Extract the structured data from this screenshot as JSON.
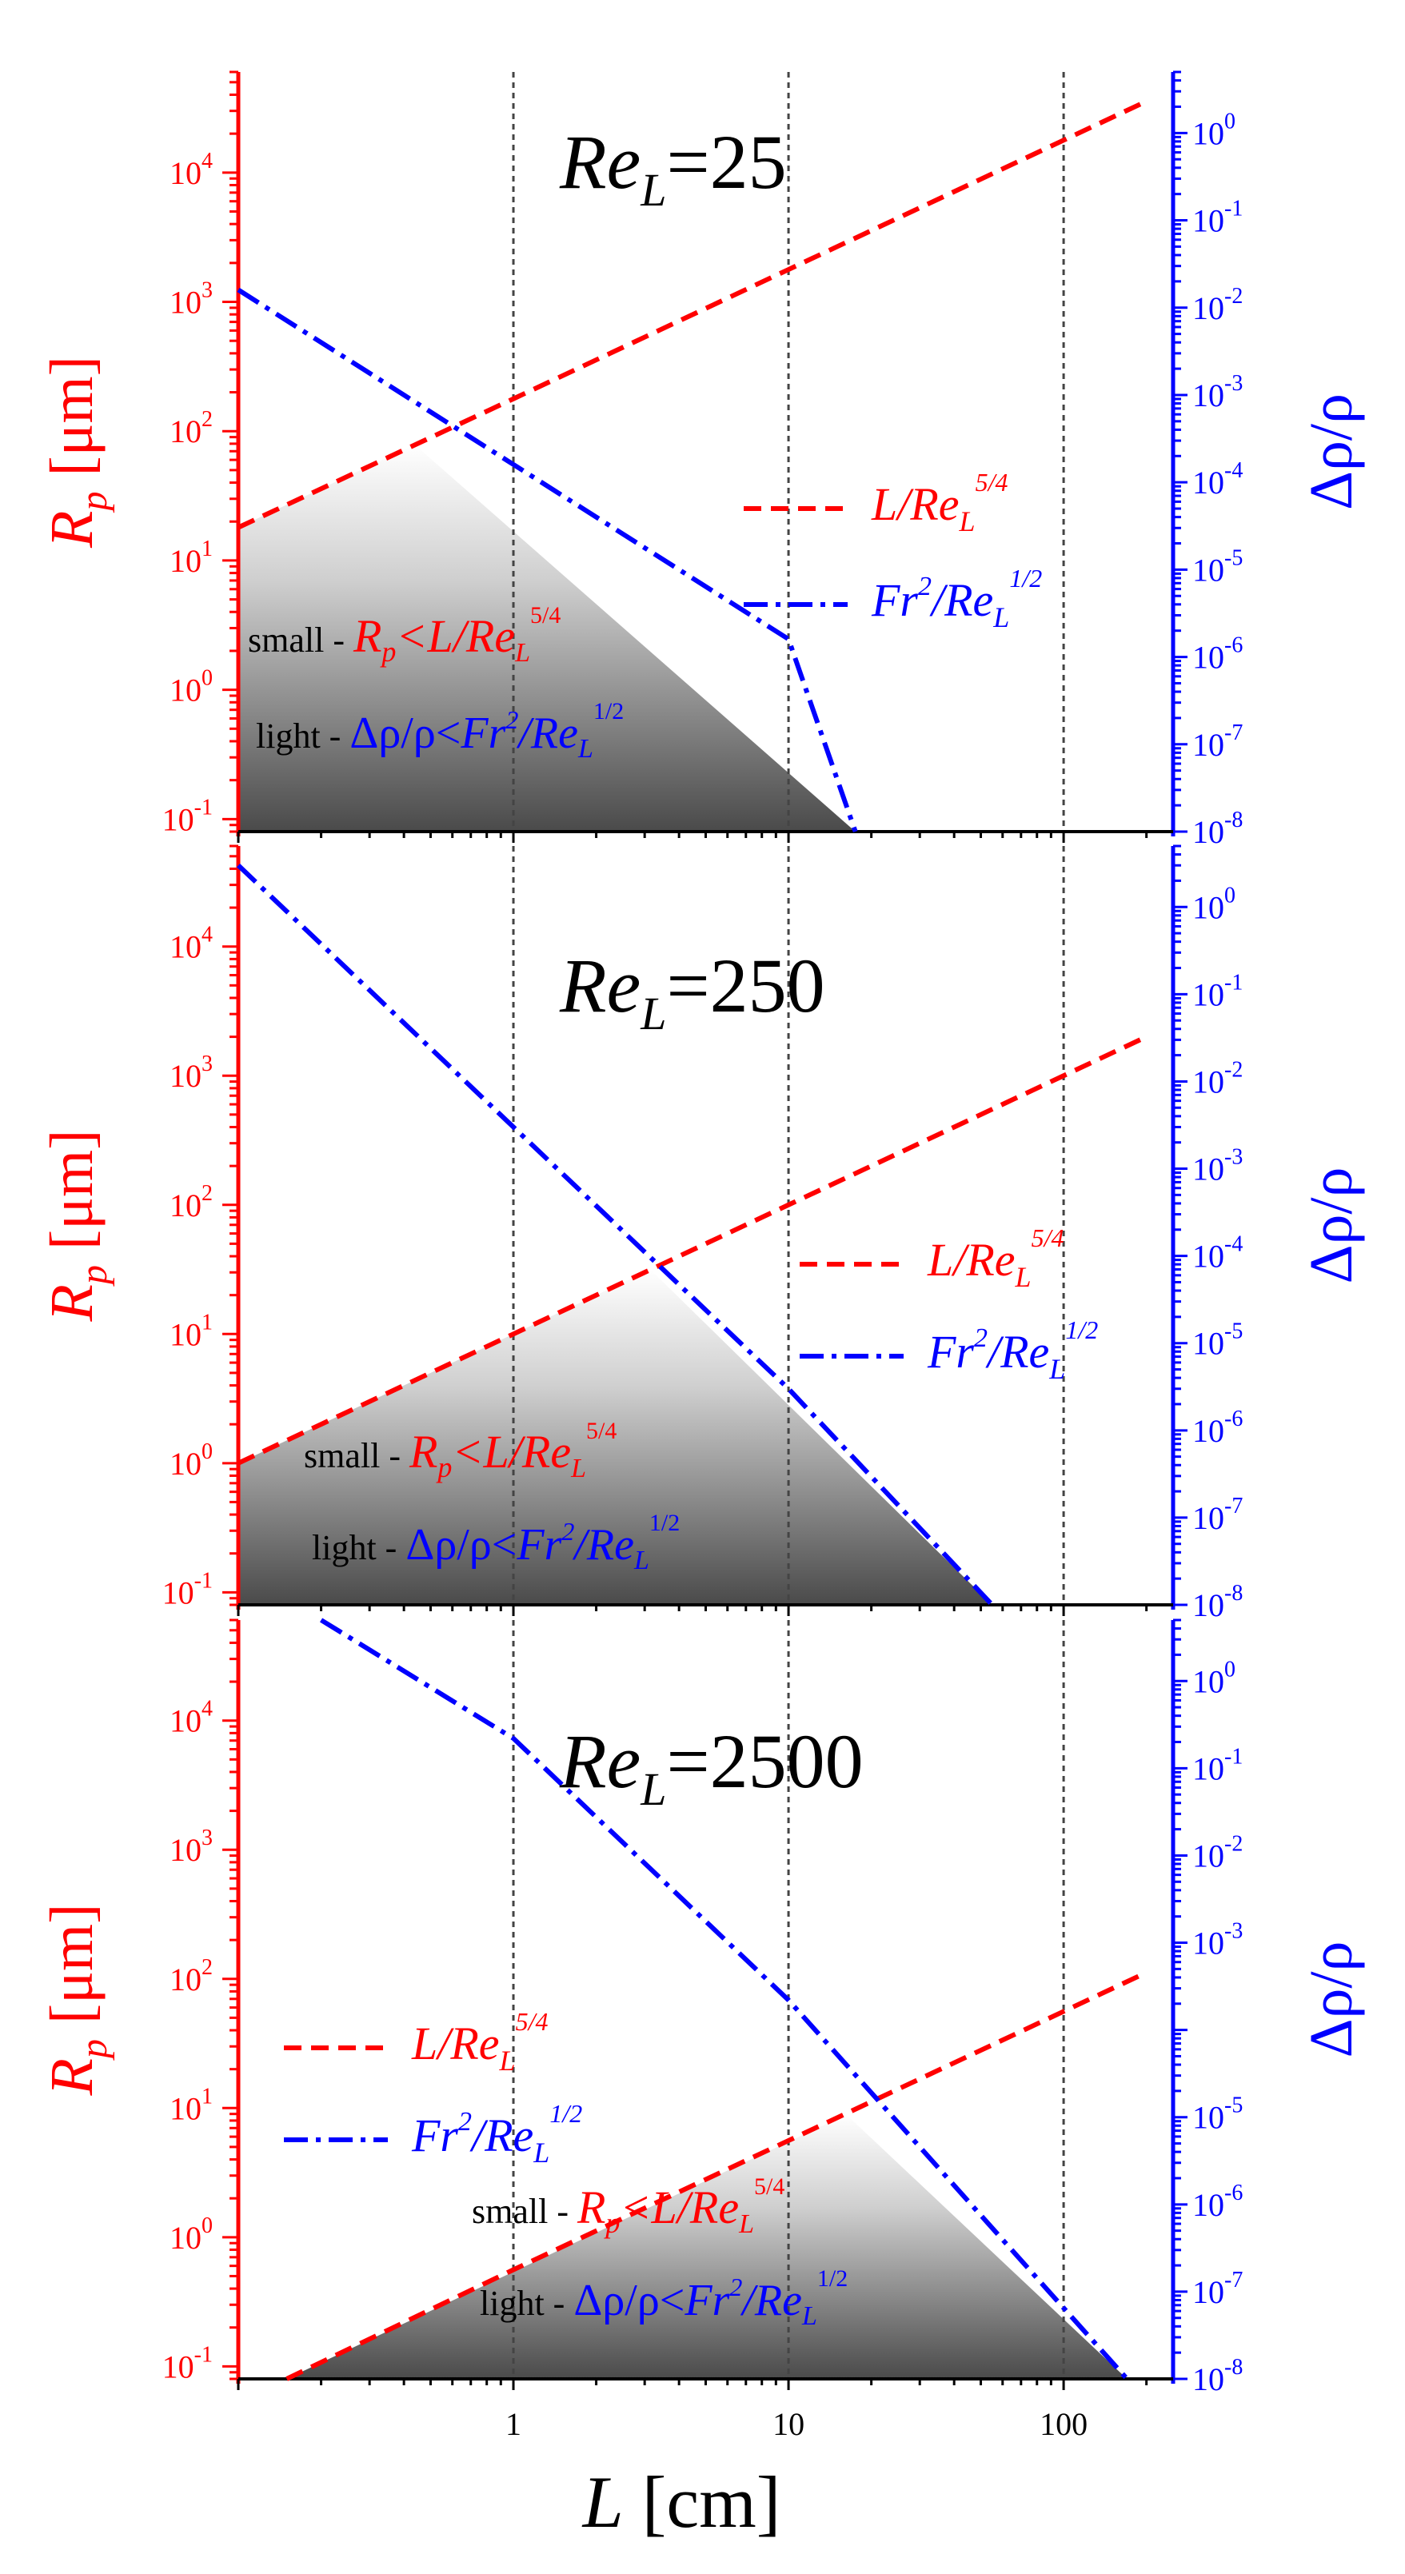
{
  "chart_data": [
    {
      "type": "line",
      "title": "Re_L=25",
      "title_parts": {
        "base": "Re",
        "sub": "L",
        "rest": "=25"
      },
      "xscale": "log",
      "y1scale": "log",
      "y2scale": "log",
      "xlim": [
        0.1,
        250
      ],
      "ylim": [
        0.08,
        60000
      ],
      "y2lim": [
        1e-08,
        5
      ],
      "x_grid_lines": [
        1,
        10,
        100
      ],
      "x_ticklabels": [],
      "y_ticklabels": [
        "10^-1",
        "10^0",
        "10^1",
        "10^2",
        "10^3",
        "10^4"
      ],
      "y2_ticklabels": [
        "10^-8",
        "10^-7",
        "10^-6",
        "10^-5",
        "10^-4",
        "10^-3",
        "10^-2",
        "10^-1",
        "10^0"
      ],
      "ylabel": "R_p [μm]",
      "y2label": "Δρ/ρ",
      "series": [
        {
          "name": "L/Re_L^5/4",
          "axis": "left",
          "style": "dashed",
          "color": "#ff0000",
          "x": [
            0.1,
            1,
            10,
            100,
            200
          ],
          "y": [
            18,
            178,
            1780,
            17800,
            35600
          ]
        },
        {
          "name": "Fr^2/Re_L^1/2",
          "axis": "right",
          "style": "dashdot",
          "color": "#0000ff",
          "x": [
            0.1,
            1,
            10,
            17.5
          ],
          "y": [
            0.016,
            0.00016,
            1.6e-06,
            1e-08
          ]
        }
      ],
      "legend": {
        "position": "center-right",
        "entries": [
          {
            "series": 0,
            "base": "L/Re",
            "sub": "L",
            "sup": "5/4"
          },
          {
            "series": 1,
            "base": "Fr",
            "sup1": "2",
            "mid": "/Re",
            "sub": "L",
            "sup": "1/2"
          }
        ]
      },
      "annotations": [
        {
          "prefix": "small - ",
          "text": "R_p<L/Re_L^5/4"
        },
        {
          "prefix": "light - ",
          "text": "Δρ/ρ<Fr^2/Re_L^1/2"
        }
      ]
    },
    {
      "type": "line",
      "title": "Re_L=250",
      "title_parts": {
        "base": "Re",
        "sub": "L",
        "rest": "=250"
      },
      "xscale": "log",
      "y1scale": "log",
      "y2scale": "log",
      "xlim": [
        0.1,
        250
      ],
      "ylim": [
        0.08,
        60000
      ],
      "y2lim": [
        1e-08,
        5
      ],
      "x_grid_lines": [
        1,
        10,
        100
      ],
      "x_ticklabels": [],
      "y_ticklabels": [
        "10^-1",
        "10^0",
        "10^1",
        "10^2",
        "10^3",
        "10^4"
      ],
      "y2_ticklabels": [
        "10^-8",
        "10^-7",
        "10^-6",
        "10^-5",
        "10^-4",
        "10^-3",
        "10^-2",
        "10^-1",
        "10^0"
      ],
      "ylabel": "R_p [μm]",
      "y2label": "Δρ/ρ",
      "series": [
        {
          "name": "L/Re_L^5/4",
          "axis": "left",
          "style": "dashed",
          "color": "#ff0000",
          "x": [
            0.1,
            1,
            10,
            100,
            200
          ],
          "y": [
            1.0,
            10,
            100,
            1000,
            2000
          ]
        },
        {
          "name": "Fr^2/Re_L^1/2",
          "axis": "right",
          "style": "dashdot",
          "color": "#0000ff",
          "x": [
            0.1,
            1,
            10,
            55
          ],
          "y": [
            3.0,
            0.003,
            3e-06,
            1e-08
          ]
        }
      ],
      "legend": {
        "position": "center-right",
        "entries": [
          {
            "series": 0,
            "base": "L/Re",
            "sub": "L",
            "sup": "5/4"
          },
          {
            "series": 1,
            "base": "Fr",
            "sup1": "2",
            "mid": "/Re",
            "sub": "L",
            "sup": "1/2"
          }
        ]
      },
      "annotations": [
        {
          "prefix": "small - ",
          "text": "R_p<L/Re_L^5/4"
        },
        {
          "prefix": "light - ",
          "text": "Δρ/ρ<Fr^2/Re_L^1/2"
        }
      ]
    },
    {
      "type": "line",
      "title": "Re_L=2500",
      "title_parts": {
        "base": "Re",
        "sub": "L",
        "rest": "=2500"
      },
      "xscale": "log",
      "y1scale": "log",
      "y2scale": "log",
      "xlim": [
        0.1,
        250
      ],
      "ylim": [
        0.08,
        60000
      ],
      "y2lim": [
        1e-08,
        5
      ],
      "x_grid_lines": [
        1,
        10,
        100
      ],
      "x_ticklabels": [
        "1",
        "10",
        "100"
      ],
      "xlabel": "L [cm]",
      "y_ticklabels": [
        "10^-1",
        "10^0",
        "10^1",
        "10^2",
        "10^3",
        "10^4"
      ],
      "y2_ticklabels": [
        "10^-8",
        "10^-7",
        "10^-6",
        "10^-5",
        "10^-3",
        "10^-2",
        "10^-1",
        "10^0"
      ],
      "ylabel": "R_p [μm]",
      "y2label": "Δρ/ρ",
      "series": [
        {
          "name": "L/Re_L^5/4",
          "axis": "left",
          "style": "dashed",
          "color": "#ff0000",
          "x": [
            0.15,
            1,
            10,
            100,
            200
          ],
          "y": [
            0.08,
            0.56,
            5.6,
            56,
            112
          ]
        },
        {
          "name": "Fr^2/Re_L^1/2",
          "axis": "right",
          "style": "dashdot",
          "color": "#0000ff",
          "x": [
            0.2,
            1,
            10,
            170
          ],
          "y": [
            5,
            0.22,
            0.00022,
            1e-08
          ]
        }
      ],
      "legend": {
        "position": "center-left",
        "entries": [
          {
            "series": 0,
            "base": "L/Re",
            "sub": "L",
            "sup": "5/4"
          },
          {
            "series": 1,
            "base": "Fr",
            "sup1": "2",
            "mid": "/Re",
            "sub": "L",
            "sup": "1/2"
          }
        ]
      },
      "annotations": [
        {
          "prefix": "small - ",
          "text": "R_p<L/Re_L^5/4"
        },
        {
          "prefix": "light - ",
          "text": "Δρ/ρ<Fr^2/Re_L^1/2"
        }
      ]
    }
  ]
}
